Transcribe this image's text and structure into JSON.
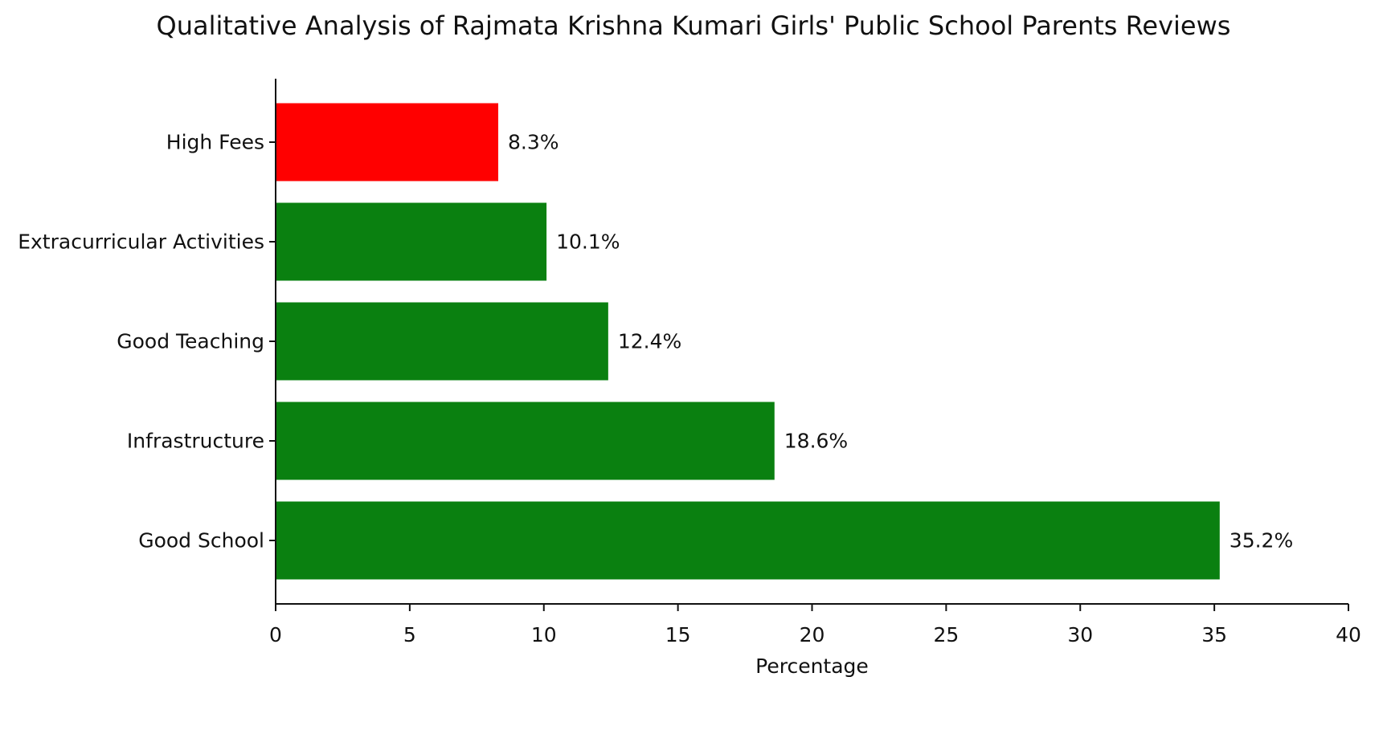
{
  "chart_data": {
    "type": "bar",
    "orientation": "horizontal",
    "title": "Qualitative Analysis of Rajmata Krishna Kumari Girls' Public School Parents Reviews",
    "xlabel": "Percentage",
    "ylabel": "",
    "xlim": [
      0,
      40
    ],
    "xticks": [
      0,
      5,
      10,
      15,
      20,
      25,
      30,
      35,
      40
    ],
    "categories": [
      "High Fees",
      "Extracurricular Activities",
      "Good Teaching",
      "Infrastructure",
      "Good School"
    ],
    "values": [
      8.3,
      10.1,
      12.4,
      18.6,
      35.2
    ],
    "value_labels": [
      "8.3%",
      "10.1%",
      "12.4%",
      "18.6%",
      "35.2%"
    ],
    "bar_colors": [
      "#ff0000",
      "#0a8010",
      "#0a8010",
      "#0a8010",
      "#0a8010"
    ],
    "grid": false,
    "legend": "none"
  }
}
